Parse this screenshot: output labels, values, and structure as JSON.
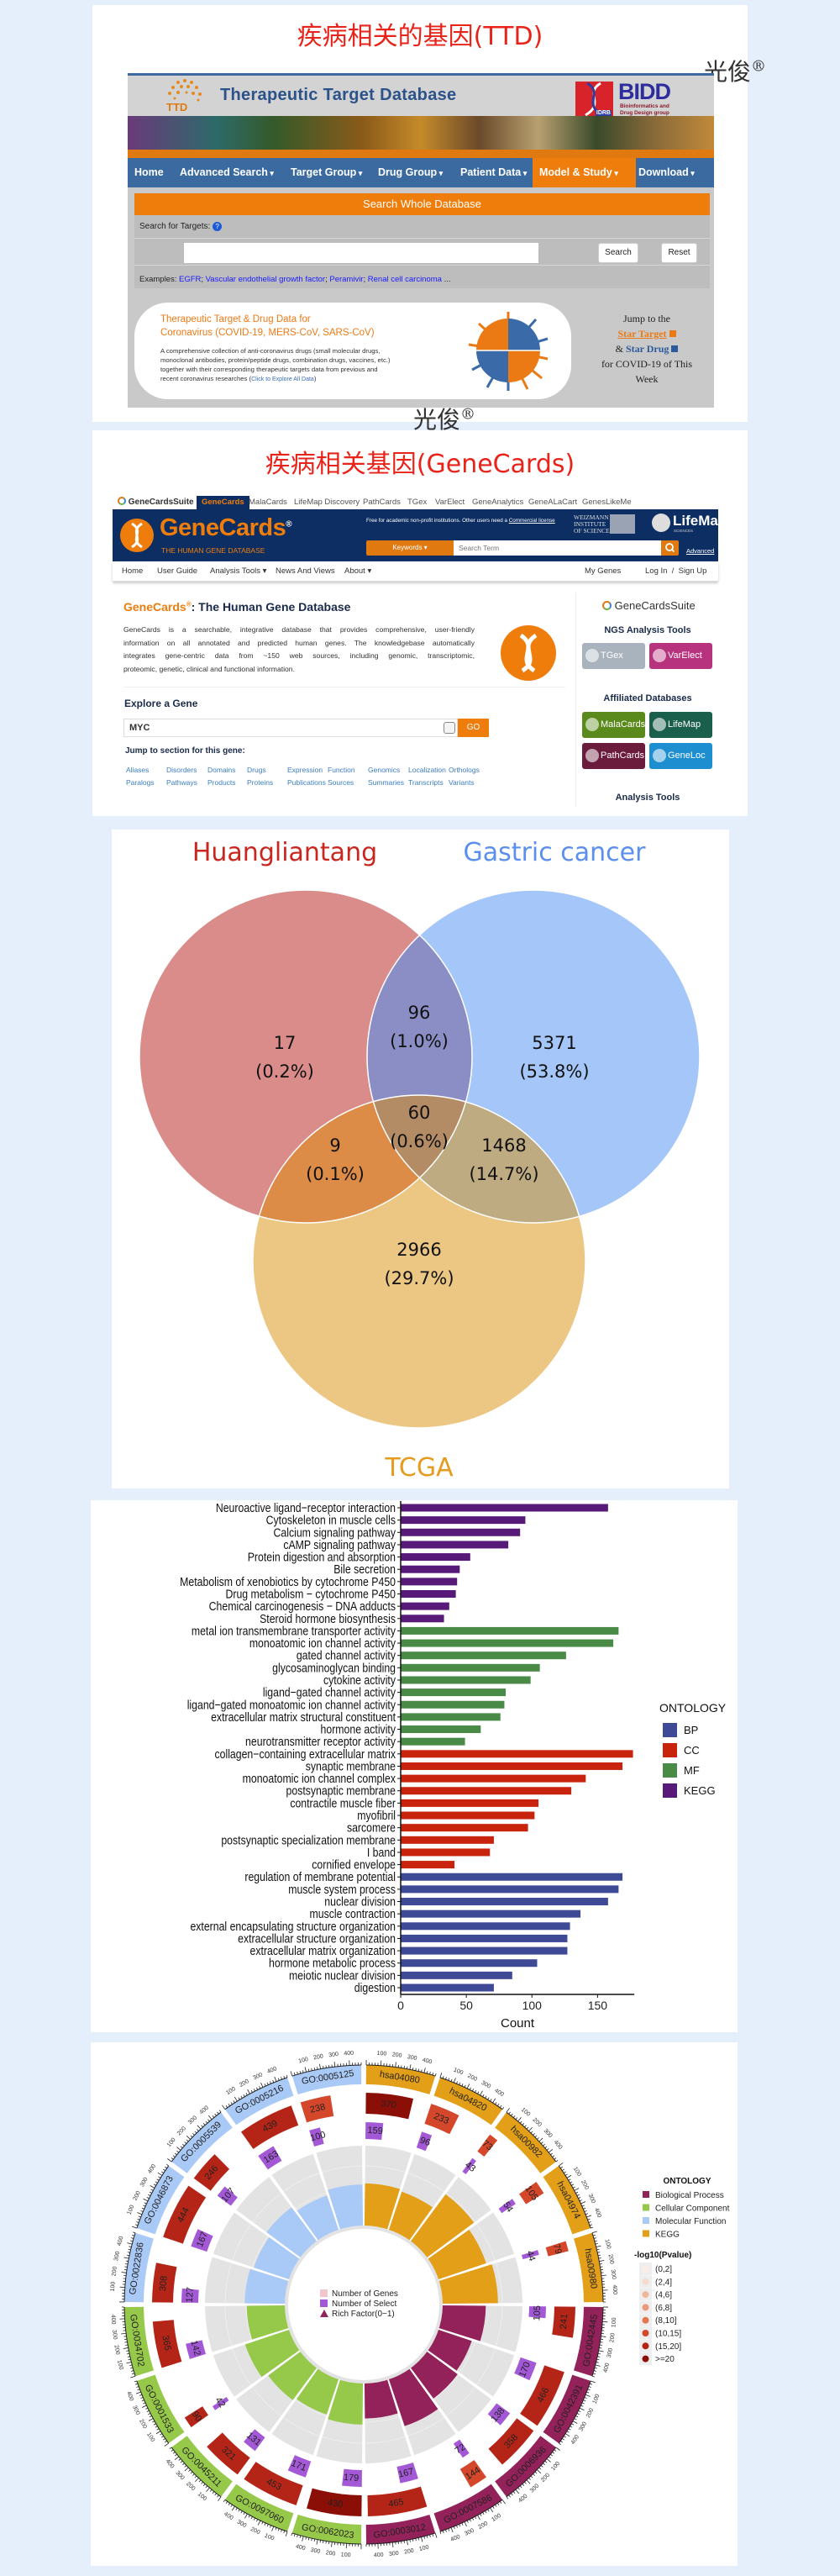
{
  "panel1": {
    "title": "疾病相关的基因(TTD)",
    "watermark": "光俊",
    "watermark_mark": "®"
  },
  "ttd": {
    "logo_text": "TTD",
    "header_title_words": [
      "Therapeutic",
      "Target",
      "Database"
    ],
    "bidd": {
      "name": "BIDD",
      "subtitle_line1": "Bioinformatics and",
      "subtitle_line2": "Drug Design group",
      "idrb": "IDRB"
    },
    "nav": [
      {
        "label": "Home",
        "dropdown": false
      },
      {
        "label": "Advanced Search",
        "dropdown": true
      },
      {
        "label": "Target Group",
        "dropdown": true
      },
      {
        "label": "Drug Group",
        "dropdown": true
      },
      {
        "label": "Patient Data",
        "dropdown": true
      },
      {
        "label": "Model & Study",
        "dropdown": true,
        "active": true
      },
      {
        "label": "Download",
        "dropdown": true
      }
    ],
    "search_bar_title": "Search Whole Database",
    "search_label": "Search for Targets:",
    "help_icon": "?",
    "search_value": "",
    "search_button": "Search",
    "reset_button": "Reset",
    "examples_label": "Examples:",
    "examples": [
      "EGFR",
      "Vascular endothelial growth factor",
      "Peramivir",
      "Renal cell carcinoma"
    ],
    "examples_more": "...",
    "covid": {
      "title_line1": "Therapeutic Target & Drug Data for",
      "title_line2": "Coronavirus (COVID-19, MERS-CoV, SARS-CoV)",
      "desc": [
        "A comprehensive collection of anti-coronavirus drugs (small molecular drugs,",
        "monoclonal antibodies, protein/peptide drugs, combination drugs, vaccines, etc.)",
        "together with their corresponding therapeutic targets data from previous and",
        "recent coronavirus researches ("
      ],
      "link": "Click to Explore All Data",
      "desc_end": ")"
    },
    "jump": {
      "line1": "Jump to the",
      "star_target": "Star Target",
      "amp": "&",
      "star_drug": "Star Drug",
      "line4": "for COVID-19 of This",
      "line5": "Week"
    }
  },
  "panel2": {
    "title": "疾病相关基因(GeneCards)"
  },
  "genecards": {
    "suite_logo": "GeneCardsSuite",
    "tabs": [
      "GeneCards",
      "MalaCards",
      "LifeMap Discovery",
      "PathCards",
      "TGex",
      "VarElect",
      "GeneAnalytics",
      "GeneALaCart",
      "GenesLikeMe"
    ],
    "logo_text": "GeneCards",
    "logo_mark": "®",
    "tagline": "THE HUMAN GENE DATABASE",
    "license_text": "Free for academic non-profit institutions. Other users need a ",
    "license_link": "Commercial license",
    "weizmann": [
      "WEIZMANN",
      "INSTITUTE",
      "OF SCIENCE"
    ],
    "lifemap": "LifeMap",
    "lifemap_sub": "SCIENCES",
    "keywords_label": "Keywords",
    "search_placeholder": "Search Term",
    "advanced_link": "Advanced",
    "nav_left": [
      {
        "label": "Home"
      },
      {
        "label": "User Guide"
      },
      {
        "label": "Analysis Tools",
        "dropdown": true
      },
      {
        "label": "News And Views"
      },
      {
        "label": "About",
        "dropdown": true
      }
    ],
    "nav_right": [
      "My Genes",
      "Log In  /  Sign Up"
    ],
    "heading_brand": "GeneCards",
    "heading_mark": "®",
    "heading_rest": ": The Human Gene Database",
    "description": [
      "GeneCards is a searchable, integrative database that provides comprehensive, user-friendly",
      "information on all annotated and predicted human genes. The knowledgebase automatically",
      "integrates gene-centric data from ~150 web sources, including genomic, transcriptomic,",
      "proteomic, genetic, clinical and functional information."
    ],
    "explore_title": "Explore a Gene",
    "gene_value": "MYC",
    "go_button": "GO",
    "jump_title": "Jump to section for this gene:",
    "section_links": [
      [
        "Aliases",
        "Disorders",
        "Domains",
        "Drugs",
        "Expression",
        "Function",
        "Genomics",
        "Localization",
        "Orthologs"
      ],
      [
        "Paralogs",
        "Pathways",
        "Products",
        "Proteins",
        "Publications",
        "Sources",
        "Summaries",
        "Transcripts",
        "Variants"
      ]
    ],
    "side_suite_logo": "GeneCardsSuite",
    "ngs_title": "NGS Analysis Tools",
    "ngs_tools": [
      {
        "name": "TGex",
        "color": "#a9b3be"
      },
      {
        "name": "VarElect",
        "color": "#b8337e"
      }
    ],
    "affiliated_title": "Affiliated Databases",
    "affiliated": [
      {
        "name": "MalaCards",
        "color": "#5b8a1c"
      },
      {
        "name": "LifeMap",
        "color": "#1a5e4c"
      },
      {
        "name": "PathCards",
        "color": "#6b1b3c"
      },
      {
        "name": "GeneLoc",
        "color": "#1d8fd0"
      }
    ],
    "analysis_title": "Analysis Tools"
  },
  "chart_data": [
    {
      "type": "venn",
      "sets": [
        {
          "name": "Huangliantang",
          "color": "#d98c8a",
          "label_color": "#c8261e"
        },
        {
          "name": "Gastric cancer",
          "color": "#a4c6f8",
          "label_color": "#5a8ff0"
        },
        {
          "name": "TCGA",
          "color": "#ecc784",
          "label_color": "#e69b1e"
        }
      ],
      "regions": [
        {
          "sets": [
            "Huangliantang"
          ],
          "count": "17",
          "percent": "(0.2%)"
        },
        {
          "sets": [
            "Huangliantang",
            "Gastric cancer"
          ],
          "count": "96",
          "percent": "(1.0%)"
        },
        {
          "sets": [
            "Gastric cancer"
          ],
          "count": "5371",
          "percent": "(53.8%)"
        },
        {
          "sets": [
            "Huangliantang",
            "Gastric cancer",
            "TCGA"
          ],
          "count": "60",
          "percent": "(0.6%)"
        },
        {
          "sets": [
            "Huangliantang",
            "TCGA"
          ],
          "count": "9",
          "percent": "(0.1%)"
        },
        {
          "sets": [
            "Gastric cancer",
            "TCGA"
          ],
          "count": "1468",
          "percent": "(14.7%)"
        },
        {
          "sets": [
            "TCGA"
          ],
          "count": "2966",
          "percent": "(29.7%)"
        }
      ]
    },
    {
      "type": "bar",
      "orientation": "horizontal",
      "xlabel": "Count",
      "ylabel": "",
      "xlim": [
        0,
        178
      ],
      "xticks": [
        "0",
        "50",
        "100",
        "150"
      ],
      "grid": false,
      "legend": {
        "title": "ONTOLOGY",
        "position": "right",
        "entries": [
          {
            "name": "BP",
            "color": "#3f4a97"
          },
          {
            "name": "CC",
            "color": "#c8230c"
          },
          {
            "name": "MF",
            "color": "#4a8a47"
          },
          {
            "name": "KEGG",
            "color": "#581a78"
          }
        ]
      },
      "categories": [
        "Neuroactive ligand−receptor interaction",
        "Cytoskeleton in muscle cells",
        "Calcium signaling pathway",
        "cAMP signaling pathway",
        "Protein digestion and absorption",
        "Bile secretion",
        "Metabolism of xenobiotics by cytochrome P450",
        "Drug metabolism − cytochrome P450",
        "Chemical carcinogenesis − DNA adducts",
        "Steroid hormone biosynthesis",
        "metal ion transmembrane transporter activity",
        "monoatomic ion channel activity",
        "gated channel activity",
        "glycosaminoglycan binding",
        "cytokine activity",
        "ligand−gated channel activity",
        "ligand−gated monoatomic ion channel activity",
        "extracellular matrix structural constituent",
        "hormone activity",
        "neurotransmitter receptor activity",
        "collagen−containing extracellular matrix",
        "synaptic membrane",
        "monoatomic ion channel complex",
        "postsynaptic membrane",
        "contractile muscle fiber",
        "myofibril",
        "sarcomere",
        "postsynaptic specialization membrane",
        "I band",
        "cornified envelope",
        "regulation of membrane potential",
        "muscle system process",
        "nuclear division",
        "muscle contraction",
        "external encapsulating structure organization",
        "extracellular structure organization",
        "extracellular matrix organization",
        "hormone metabolic process",
        "meiotic nuclear division",
        "digestion"
      ],
      "values": [
        158,
        95,
        91,
        82,
        53,
        45,
        43,
        42,
        37,
        33,
        166,
        162,
        126,
        106,
        99,
        80,
        79,
        76,
        61,
        49,
        177,
        169,
        141,
        130,
        105,
        102,
        97,
        71,
        68,
        41,
        169,
        166,
        158,
        137,
        129,
        127,
        127,
        104,
        85,
        71
      ],
      "ontology": [
        "KEGG",
        "KEGG",
        "KEGG",
        "KEGG",
        "KEGG",
        "KEGG",
        "KEGG",
        "KEGG",
        "KEGG",
        "KEGG",
        "MF",
        "MF",
        "MF",
        "MF",
        "MF",
        "MF",
        "MF",
        "MF",
        "MF",
        "MF",
        "CC",
        "CC",
        "CC",
        "CC",
        "CC",
        "CC",
        "CC",
        "CC",
        "CC",
        "CC",
        "BP",
        "BP",
        "BP",
        "BP",
        "BP",
        "BP",
        "BP",
        "BP",
        "BP",
        "BP"
      ]
    },
    {
      "type": "circular-bar",
      "ontology_legend": {
        "title": "ONTOLOGY",
        "entries": [
          {
            "name": "Biological Process",
            "key": "BP",
            "color": "#93215a"
          },
          {
            "name": "Cellular Component",
            "key": "CC",
            "color": "#96c94a"
          },
          {
            "name": "Molecular Function",
            "key": "MF",
            "color": "#a9c9f6"
          },
          {
            "name": "KEGG",
            "key": "KEGG",
            "color": "#e39f17"
          }
        ]
      },
      "pvalue_legend": {
        "title": "-log10(Pvalue)",
        "bins": [
          {
            "label": "(0,2]",
            "color": "#fbeee6"
          },
          {
            "label": "(2,4]",
            "color": "#f6dccd"
          },
          {
            "label": "(4,6]",
            "color": "#eeb89b"
          },
          {
            "label": "(6,8]",
            "color": "#e99a7a"
          },
          {
            "label": "(8,10]",
            "color": "#e2764f"
          },
          {
            "label": "(10,15]",
            "color": "#d4472b"
          },
          {
            "label": "(15,20]",
            "color": "#b52517"
          },
          {
            "label": ">=20",
            "color": "#8b0f06"
          }
        ]
      },
      "center_legend": [
        {
          "label": "Number of Genes",
          "color": "#f2c6cc",
          "shape": "square"
        },
        {
          "label": "Number of Select",
          "color": "#a358d6",
          "shape": "square"
        },
        {
          "label": "Rich Factor(0−1)",
          "color": "#93215a",
          "shape": "triangle"
        }
      ],
      "select_color": "#a358d6",
      "scale_ticks": [
        "100",
        "200",
        "300",
        "400"
      ],
      "terms": [
        {
          "id": "hsa04080",
          "ontology": "KEGG",
          "genes": 370,
          "select": 159,
          "rich_factor": 0.43,
          "pvalue_bin": ">=20"
        },
        {
          "id": "hsa04820",
          "ontology": "KEGG",
          "genes": 233,
          "select": 96,
          "rich_factor": 0.41,
          "pvalue_bin": "(10,15]"
        },
        {
          "id": "hsa00982",
          "ontology": "KEGG",
          "genes": 73,
          "select": 43,
          "rich_factor": 0.59,
          "pvalue_bin": "(10,15]"
        },
        {
          "id": "hsa04974",
          "ontology": "KEGG",
          "genes": 105,
          "select": 54,
          "rich_factor": 0.51,
          "pvalue_bin": "(10,15]"
        },
        {
          "id": "hsa00980",
          "ontology": "KEGG",
          "genes": 79,
          "select": 44,
          "rich_factor": 0.56,
          "pvalue_bin": "(10,15]"
        },
        {
          "id": "GO:0042445",
          "ontology": "BP",
          "genes": 241,
          "select": 105,
          "rich_factor": 0.44,
          "pvalue_bin": "(15,20]"
        },
        {
          "id": "GO:0042391",
          "ontology": "BP",
          "genes": 466,
          "select": 170,
          "rich_factor": 0.36,
          "pvalue_bin": "(15,20]"
        },
        {
          "id": "GO:0006936",
          "ontology": "BP",
          "genes": 358,
          "select": 138,
          "rich_factor": 0.39,
          "pvalue_bin": "(15,20]"
        },
        {
          "id": "GO:0007586",
          "ontology": "BP",
          "genes": 144,
          "select": 72,
          "rich_factor": 0.5,
          "pvalue_bin": "(10,15]"
        },
        {
          "id": "GO:0003012",
          "ontology": "BP",
          "genes": 465,
          "select": 167,
          "rich_factor": 0.36,
          "pvalue_bin": "(15,20]"
        },
        {
          "id": "GO:0062023",
          "ontology": "CC",
          "genes": 430,
          "select": 179,
          "rich_factor": 0.42,
          "pvalue_bin": ">=20"
        },
        {
          "id": "GO:0097060",
          "ontology": "CC",
          "genes": 453,
          "select": 171,
          "rich_factor": 0.38,
          "pvalue_bin": "(15,20]"
        },
        {
          "id": "GO:0045211",
          "ontology": "CC",
          "genes": 321,
          "select": 131,
          "rich_factor": 0.41,
          "pvalue_bin": "(15,20]"
        },
        {
          "id": "GO:0001533",
          "ontology": "CC",
          "genes": 90,
          "select": 42,
          "rich_factor": 0.47,
          "pvalue_bin": "(15,20]"
        },
        {
          "id": "GO:0034702",
          "ontology": "CC",
          "genes": 365,
          "select": 142,
          "rich_factor": 0.39,
          "pvalue_bin": "(15,20]"
        },
        {
          "id": "GO:0022836",
          "ontology": "MF",
          "genes": 308,
          "select": 127,
          "rich_factor": 0.41,
          "pvalue_bin": "(15,20]"
        },
        {
          "id": "GO:0046873",
          "ontology": "MF",
          "genes": 444,
          "select": 167,
          "rich_factor": 0.38,
          "pvalue_bin": "(15,20]"
        },
        {
          "id": "GO:0005539",
          "ontology": "MF",
          "genes": 246,
          "select": 107,
          "rich_factor": 0.43,
          "pvalue_bin": "(15,20]"
        },
        {
          "id": "GO:0005216",
          "ontology": "MF",
          "genes": 439,
          "select": 163,
          "rich_factor": 0.37,
          "pvalue_bin": "(15,20]"
        },
        {
          "id": "GO:0005125",
          "ontology": "MF",
          "genes": 238,
          "select": 100,
          "rich_factor": 0.42,
          "pvalue_bin": "(10,15]"
        }
      ]
    }
  ]
}
